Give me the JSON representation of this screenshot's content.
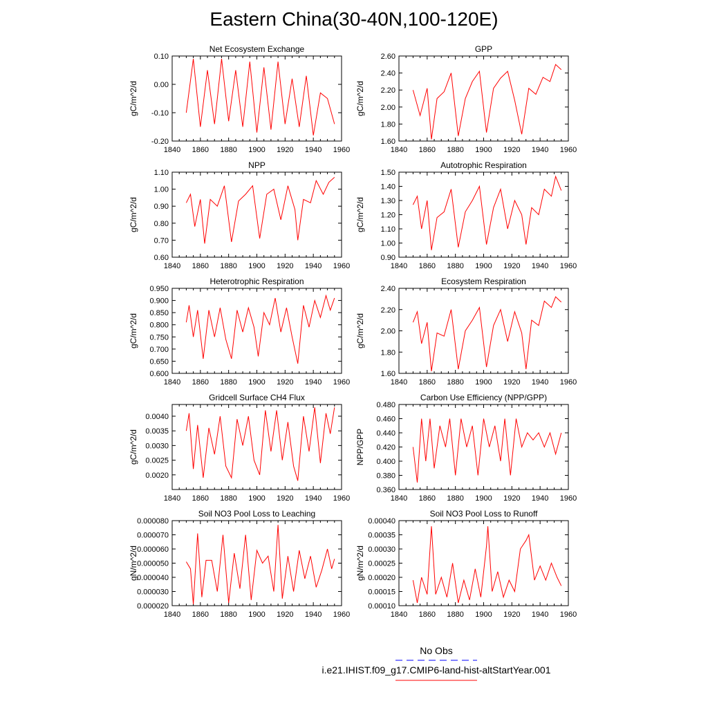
{
  "title": "Eastern China(30-40N,100-120E)",
  "legend": {
    "obs": {
      "label": "No Obs",
      "color": "#0000ff",
      "style": "dashed"
    },
    "model": {
      "label": "i.e21.IHIST.f09_g17.CMIP6-land-hist-altStartYear.001",
      "color": "#ff0000",
      "style": "solid"
    }
  },
  "chart_data": [
    {
      "type": "line",
      "title": "Net Ecosystem Exchange",
      "ylabel": "gC/m^2/d",
      "xlim": [
        1840,
        1960
      ],
      "ylim": [
        -0.2,
        0.1
      ],
      "xticks": [
        1840,
        1860,
        1880,
        1900,
        1920,
        1940,
        1960
      ],
      "xtick_labels": [
        "1840",
        "1860",
        "1880",
        "1900",
        "1920",
        "1940",
        "1960"
      ],
      "yticks": [
        -0.2,
        -0.1,
        0.0,
        0.1
      ],
      "ytick_labels": [
        "-0.20",
        "-0.10",
        "0.00",
        "0.10"
      ],
      "series": [
        {
          "color": "#ff0000",
          "x": [
            1850,
            1855,
            1860,
            1865,
            1870,
            1875,
            1880,
            1885,
            1890,
            1895,
            1900,
            1905,
            1910,
            1915,
            1920,
            1925,
            1930,
            1935,
            1940,
            1945,
            1950,
            1955
          ],
          "y": [
            -0.1,
            0.09,
            -0.15,
            0.05,
            -0.14,
            0.09,
            -0.13,
            0.05,
            -0.15,
            0.08,
            -0.17,
            0.06,
            -0.16,
            0.08,
            -0.14,
            0.02,
            -0.15,
            0.03,
            -0.18,
            -0.03,
            -0.05,
            -0.14
          ]
        }
      ]
    },
    {
      "type": "line",
      "title": "GPP",
      "ylabel": "gC/m^2/d",
      "xlim": [
        1840,
        1960
      ],
      "ylim": [
        1.6,
        2.6
      ],
      "xticks": [
        1840,
        1860,
        1880,
        1900,
        1920,
        1940,
        1960
      ],
      "xtick_labels": [
        "1840",
        "1860",
        "1880",
        "1900",
        "1920",
        "1940",
        "1960"
      ],
      "yticks": [
        1.6,
        1.8,
        2.0,
        2.2,
        2.4,
        2.6
      ],
      "ytick_labels": [
        "1.60",
        "1.80",
        "2.00",
        "2.20",
        "2.40",
        "2.60"
      ],
      "series": [
        {
          "color": "#ff0000",
          "x": [
            1850,
            1855,
            1860,
            1863,
            1867,
            1872,
            1877,
            1882,
            1887,
            1892,
            1897,
            1902,
            1907,
            1912,
            1917,
            1922,
            1927,
            1932,
            1937,
            1942,
            1947,
            1951,
            1955
          ],
          "y": [
            2.2,
            1.9,
            2.22,
            1.62,
            2.1,
            2.18,
            2.4,
            1.66,
            2.1,
            2.3,
            2.42,
            1.7,
            2.22,
            2.34,
            2.42,
            2.08,
            1.68,
            2.22,
            2.15,
            2.35,
            2.3,
            2.5,
            2.44
          ]
        }
      ]
    },
    {
      "type": "line",
      "title": "NPP",
      "ylabel": "gC/m^2/d",
      "xlim": [
        1840,
        1960
      ],
      "ylim": [
        0.6,
        1.1
      ],
      "xticks": [
        1840,
        1860,
        1880,
        1900,
        1920,
        1940,
        1960
      ],
      "xtick_labels": [
        "1840",
        "1860",
        "1880",
        "1900",
        "1920",
        "1940",
        "1960"
      ],
      "yticks": [
        0.6,
        0.7,
        0.8,
        0.9,
        1.0,
        1.1
      ],
      "ytick_labels": [
        "0.60",
        "0.70",
        "0.80",
        "0.90",
        "1.00",
        "1.10"
      ],
      "series": [
        {
          "color": "#ff0000",
          "x": [
            1850,
            1853,
            1856,
            1860,
            1863,
            1867,
            1872,
            1877,
            1882,
            1887,
            1892,
            1897,
            1902,
            1907,
            1912,
            1917,
            1922,
            1927,
            1929,
            1933,
            1938,
            1942,
            1947,
            1951,
            1955
          ],
          "y": [
            0.92,
            0.97,
            0.78,
            0.94,
            0.68,
            0.94,
            0.9,
            1.02,
            0.69,
            0.93,
            0.97,
            1.02,
            0.71,
            0.97,
            1.0,
            0.82,
            1.02,
            0.88,
            0.7,
            0.94,
            0.92,
            1.05,
            0.97,
            1.04,
            1.07
          ]
        }
      ]
    },
    {
      "type": "line",
      "title": "Autotrophic Respiration",
      "ylabel": "gC/m^2/d",
      "xlim": [
        1840,
        1960
      ],
      "ylim": [
        0.9,
        1.5
      ],
      "xticks": [
        1840,
        1860,
        1880,
        1900,
        1920,
        1940,
        1960
      ],
      "xtick_labels": [
        "1840",
        "1860",
        "1880",
        "1900",
        "1920",
        "1940",
        "1960"
      ],
      "yticks": [
        0.9,
        1.0,
        1.1,
        1.2,
        1.3,
        1.4,
        1.5
      ],
      "ytick_labels": [
        "0.90",
        "1.00",
        "1.10",
        "1.20",
        "1.30",
        "1.40",
        "1.50"
      ],
      "series": [
        {
          "color": "#ff0000",
          "x": [
            1850,
            1853,
            1856,
            1860,
            1863,
            1867,
            1872,
            1877,
            1882,
            1887,
            1892,
            1897,
            1902,
            1907,
            1912,
            1917,
            1922,
            1927,
            1930,
            1934,
            1939,
            1943,
            1948,
            1951,
            1955
          ],
          "y": [
            1.27,
            1.33,
            1.1,
            1.3,
            0.95,
            1.18,
            1.22,
            1.38,
            0.97,
            1.22,
            1.3,
            1.4,
            0.99,
            1.25,
            1.38,
            1.1,
            1.3,
            1.2,
            0.99,
            1.25,
            1.2,
            1.38,
            1.33,
            1.47,
            1.37
          ]
        }
      ]
    },
    {
      "type": "line",
      "title": "Heterotrophic Respiration",
      "ylabel": "gC/m^2/d",
      "xlim": [
        1840,
        1960
      ],
      "ylim": [
        0.6,
        0.95
      ],
      "xticks": [
        1840,
        1860,
        1880,
        1900,
        1920,
        1940,
        1960
      ],
      "xtick_labels": [
        "1840",
        "1860",
        "1880",
        "1900",
        "1920",
        "1940",
        "1960"
      ],
      "yticks": [
        0.6,
        0.65,
        0.7,
        0.75,
        0.8,
        0.85,
        0.9,
        0.95
      ],
      "ytick_labels": [
        "0.600",
        "0.650",
        "0.700",
        "0.750",
        "0.800",
        "0.850",
        "0.900",
        "0.950"
      ],
      "series": [
        {
          "color": "#ff0000",
          "x": [
            1850,
            1852,
            1855,
            1858,
            1862,
            1866,
            1870,
            1874,
            1878,
            1882,
            1886,
            1890,
            1894,
            1898,
            1901,
            1905,
            1909,
            1913,
            1917,
            1921,
            1925,
            1929,
            1933,
            1937,
            1941,
            1945,
            1949,
            1952,
            1955
          ],
          "y": [
            0.81,
            0.88,
            0.75,
            0.86,
            0.66,
            0.86,
            0.75,
            0.87,
            0.74,
            0.66,
            0.86,
            0.77,
            0.87,
            0.79,
            0.67,
            0.85,
            0.8,
            0.91,
            0.77,
            0.87,
            0.75,
            0.64,
            0.88,
            0.79,
            0.9,
            0.83,
            0.92,
            0.86,
            0.91
          ]
        }
      ]
    },
    {
      "type": "line",
      "title": "Ecosystem Respiration",
      "ylabel": "gC/m^2/d",
      "xlim": [
        1840,
        1960
      ],
      "ylim": [
        1.6,
        2.4
      ],
      "xticks": [
        1840,
        1860,
        1880,
        1900,
        1920,
        1940,
        1960
      ],
      "xtick_labels": [
        "1840",
        "1860",
        "1880",
        "1900",
        "1920",
        "1940",
        "1960"
      ],
      "yticks": [
        1.6,
        1.8,
        2.0,
        2.2,
        2.4
      ],
      "ytick_labels": [
        "1.60",
        "1.80",
        "2.00",
        "2.20",
        "2.40"
      ],
      "series": [
        {
          "color": "#ff0000",
          "x": [
            1850,
            1853,
            1856,
            1860,
            1863,
            1867,
            1872,
            1877,
            1882,
            1887,
            1892,
            1897,
            1902,
            1907,
            1912,
            1917,
            1922,
            1927,
            1930,
            1934,
            1939,
            1943,
            1948,
            1951,
            1955
          ],
          "y": [
            2.08,
            2.18,
            1.88,
            2.08,
            1.62,
            1.98,
            1.95,
            2.2,
            1.64,
            2.0,
            2.1,
            2.22,
            1.66,
            2.05,
            2.2,
            1.9,
            2.18,
            1.98,
            1.64,
            2.1,
            2.05,
            2.28,
            2.22,
            2.32,
            2.27
          ]
        }
      ]
    },
    {
      "type": "line",
      "title": "Gridcell Surface CH4 Flux",
      "ylabel": "gC/m^2/d",
      "xlim": [
        1840,
        1960
      ],
      "ylim": [
        0.0015,
        0.0044
      ],
      "xticks": [
        1840,
        1860,
        1880,
        1900,
        1920,
        1940,
        1960
      ],
      "xtick_labels": [
        "1840",
        "1860",
        "1880",
        "1900",
        "1920",
        "1940",
        "1960"
      ],
      "yticks": [
        0.002,
        0.0025,
        0.003,
        0.0035,
        0.004
      ],
      "ytick_labels": [
        "0.0020",
        "0.0025",
        "0.0030",
        "0.0035",
        "0.0040"
      ],
      "series": [
        {
          "color": "#ff0000",
          "x": [
            1850,
            1852,
            1855,
            1858,
            1862,
            1866,
            1870,
            1874,
            1878,
            1882,
            1886,
            1890,
            1894,
            1898,
            1902,
            1906,
            1910,
            1914,
            1918,
            1922,
            1926,
            1929,
            1933,
            1937,
            1941,
            1945,
            1949,
            1952,
            1955
          ],
          "y": [
            0.0035,
            0.0041,
            0.0022,
            0.0037,
            0.0019,
            0.0036,
            0.0027,
            0.004,
            0.0023,
            0.0019,
            0.0039,
            0.003,
            0.004,
            0.0025,
            0.002,
            0.0042,
            0.0028,
            0.0042,
            0.0025,
            0.0038,
            0.0023,
            0.0018,
            0.004,
            0.0028,
            0.0043,
            0.0024,
            0.0041,
            0.0034,
            0.0043
          ]
        }
      ]
    },
    {
      "type": "line",
      "title": "Carbon Use Efficiency (NPP/GPP)",
      "ylabel": "NPP/GPP",
      "xlim": [
        1840,
        1960
      ],
      "ylim": [
        0.36,
        0.48
      ],
      "xticks": [
        1840,
        1860,
        1880,
        1900,
        1920,
        1940,
        1960
      ],
      "xtick_labels": [
        "1840",
        "1860",
        "1880",
        "1900",
        "1920",
        "1940",
        "1960"
      ],
      "yticks": [
        0.36,
        0.38,
        0.4,
        0.42,
        0.44,
        0.46,
        0.48
      ],
      "ytick_labels": [
        "0.360",
        "0.380",
        "0.400",
        "0.420",
        "0.440",
        "0.460",
        "0.480"
      ],
      "series": [
        {
          "color": "#ff0000",
          "x": [
            1850,
            1853,
            1856,
            1859,
            1862,
            1865,
            1869,
            1873,
            1876,
            1880,
            1884,
            1888,
            1892,
            1896,
            1900,
            1904,
            1908,
            1912,
            1915,
            1919,
            1923,
            1927,
            1931,
            1935,
            1939,
            1943,
            1947,
            1951,
            1955
          ],
          "y": [
            0.42,
            0.37,
            0.46,
            0.4,
            0.46,
            0.39,
            0.45,
            0.42,
            0.46,
            0.38,
            0.46,
            0.42,
            0.45,
            0.38,
            0.46,
            0.42,
            0.45,
            0.4,
            0.46,
            0.38,
            0.46,
            0.42,
            0.44,
            0.43,
            0.44,
            0.42,
            0.44,
            0.41,
            0.44
          ]
        }
      ]
    },
    {
      "type": "line",
      "title": "Soil NO3 Pool Loss to Leaching",
      "ylabel": "gN/m^2/d",
      "xlim": [
        1840,
        1960
      ],
      "ylim": [
        2e-05,
        8e-05
      ],
      "xticks": [
        1840,
        1860,
        1880,
        1900,
        1920,
        1940,
        1960
      ],
      "xtick_labels": [
        "1840",
        "1860",
        "1880",
        "1900",
        "1920",
        "1940",
        "1960"
      ],
      "yticks": [
        2e-05,
        3e-05,
        4e-05,
        5e-05,
        6e-05,
        7e-05,
        8e-05
      ],
      "ytick_labels": [
        "0.000020",
        "0.000030",
        "0.000040",
        "0.000050",
        "0.000060",
        "0.000070",
        "0.000080"
      ],
      "series": [
        {
          "color": "#ff0000",
          "x": [
            1850,
            1853,
            1855,
            1858,
            1861,
            1864,
            1868,
            1872,
            1876,
            1880,
            1884,
            1888,
            1892,
            1896,
            1900,
            1904,
            1908,
            1912,
            1915,
            1918,
            1922,
            1926,
            1930,
            1934,
            1938,
            1942,
            1946,
            1950,
            1953,
            1955
          ],
          "y": [
            5.1e-05,
            4.6e-05,
            2.1e-05,
            7.1e-05,
            2.6e-05,
            5.2e-05,
            5.2e-05,
            3e-05,
            7e-05,
            2.2e-05,
            5.7e-05,
            3.2e-05,
            7e-05,
            2.4e-05,
            5.9e-05,
            5e-05,
            5.5e-05,
            3e-05,
            7.7e-05,
            2.5e-05,
            5.5e-05,
            3e-05,
            5.9e-05,
            3.9e-05,
            5.5e-05,
            3.3e-05,
            4.5e-05,
            6e-05,
            4.6e-05,
            5.3e-05
          ]
        }
      ]
    },
    {
      "type": "line",
      "title": "Soil NO3 Pool Loss to Runoff",
      "ylabel": "gN/m^2/d",
      "xlim": [
        1840,
        1960
      ],
      "ylim": [
        0.0001,
        0.0004
      ],
      "xticks": [
        1840,
        1860,
        1880,
        1900,
        1920,
        1940,
        1960
      ],
      "xtick_labels": [
        "1840",
        "1860",
        "1880",
        "1900",
        "1920",
        "1940",
        "1960"
      ],
      "yticks": [
        0.0001,
        0.00015,
        0.0002,
        0.00025,
        0.0003,
        0.00035,
        0.0004
      ],
      "ytick_labels": [
        "0.00010",
        "0.00015",
        "0.00020",
        "0.00025",
        "0.00030",
        "0.00035",
        "0.00040"
      ],
      "series": [
        {
          "color": "#ff0000",
          "x": [
            1850,
            1853,
            1856,
            1860,
            1863,
            1866,
            1870,
            1874,
            1878,
            1882,
            1886,
            1890,
            1894,
            1898,
            1902,
            1903,
            1906,
            1910,
            1914,
            1918,
            1922,
            1926,
            1930,
            1932,
            1936,
            1940,
            1944,
            1948,
            1952,
            1955
          ],
          "y": [
            0.00019,
            0.00011,
            0.0002,
            0.00014,
            0.00038,
            0.00014,
            0.0002,
            0.00013,
            0.00025,
            0.00011,
            0.00019,
            0.00012,
            0.00023,
            0.00013,
            0.00031,
            0.00038,
            0.00015,
            0.00022,
            0.00013,
            0.00019,
            0.00015,
            0.0003,
            0.00033,
            0.00035,
            0.00019,
            0.00024,
            0.00019,
            0.00025,
            0.0002,
            0.00017
          ]
        }
      ]
    }
  ]
}
